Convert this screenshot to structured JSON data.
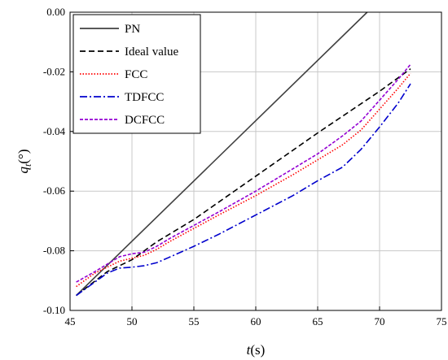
{
  "chart_data": {
    "type": "line",
    "xlabel": {
      "italic": "t",
      "rest": "(s)"
    },
    "ylabel": {
      "italic": "q",
      "sub": "t",
      "rest": "(°)"
    },
    "xlim": [
      45,
      75
    ],
    "ylim": [
      -0.1,
      0.0
    ],
    "x_ticks": [
      "45",
      "50",
      "55",
      "60",
      "65",
      "70",
      "75"
    ],
    "y_ticks": [
      "0.00",
      "-0.02",
      "-0.04",
      "-0.06",
      "-0.08",
      "-0.10"
    ],
    "grid": true,
    "legend_position": "top-left",
    "series": [
      {
        "name": "PN",
        "color": "#404040",
        "dash": "solid",
        "points": [
          [
            45.5,
            -0.095
          ],
          [
            69.0,
            0.0
          ]
        ]
      },
      {
        "name": "Ideal value",
        "color": "#000000",
        "dash": "dashed",
        "points": [
          [
            45.5,
            -0.095
          ],
          [
            48,
            -0.087
          ],
          [
            50,
            -0.083
          ],
          [
            52,
            -0.077
          ],
          [
            55,
            -0.0695
          ],
          [
            60,
            -0.055
          ],
          [
            65,
            -0.0405
          ],
          [
            70,
            -0.0265
          ],
          [
            72.5,
            -0.019
          ]
        ]
      },
      {
        "name": "FCC",
        "color": "#ff0000",
        "dash": "dotted",
        "points": [
          [
            45.5,
            -0.092
          ],
          [
            47,
            -0.0875
          ],
          [
            48,
            -0.0855
          ],
          [
            49,
            -0.0835
          ],
          [
            50,
            -0.0825
          ],
          [
            51,
            -0.0815
          ],
          [
            52,
            -0.0795
          ],
          [
            53,
            -0.077
          ],
          [
            55,
            -0.0725
          ],
          [
            57,
            -0.068
          ],
          [
            60,
            -0.0615
          ],
          [
            63,
            -0.0545
          ],
          [
            65,
            -0.0495
          ],
          [
            67,
            -0.0445
          ],
          [
            68.5,
            -0.0395
          ],
          [
            70,
            -0.0325
          ],
          [
            71.5,
            -0.0255
          ],
          [
            72.5,
            -0.0205
          ]
        ]
      },
      {
        "name": "TDFCC",
        "color": "#0000cd",
        "dash": "dashdot",
        "points": [
          [
            45.5,
            -0.095
          ],
          [
            47,
            -0.0905
          ],
          [
            48,
            -0.0875
          ],
          [
            49,
            -0.0858
          ],
          [
            50,
            -0.0855
          ],
          [
            51,
            -0.085
          ],
          [
            52,
            -0.084
          ],
          [
            53,
            -0.0822
          ],
          [
            55,
            -0.0785
          ],
          [
            57,
            -0.0745
          ],
          [
            60,
            -0.068
          ],
          [
            63,
            -0.0615
          ],
          [
            65,
            -0.0565
          ],
          [
            67,
            -0.052
          ],
          [
            68.5,
            -0.046
          ],
          [
            70,
            -0.0385
          ],
          [
            71.5,
            -0.0305
          ],
          [
            72.5,
            -0.024
          ]
        ]
      },
      {
        "name": "DCFCC",
        "color": "#9400d3",
        "dash": "shortdash",
        "points": [
          [
            45.5,
            -0.0905
          ],
          [
            47,
            -0.087
          ],
          [
            48,
            -0.0845
          ],
          [
            49,
            -0.082
          ],
          [
            50,
            -0.081
          ],
          [
            51,
            -0.0805
          ],
          [
            52,
            -0.0785
          ],
          [
            53,
            -0.076
          ],
          [
            55,
            -0.0715
          ],
          [
            57,
            -0.067
          ],
          [
            60,
            -0.06
          ],
          [
            63,
            -0.0525
          ],
          [
            65,
            -0.0475
          ],
          [
            67,
            -0.0415
          ],
          [
            68.5,
            -0.0365
          ],
          [
            70,
            -0.0295
          ],
          [
            71.5,
            -0.0225
          ],
          [
            72.5,
            -0.0175
          ]
        ]
      }
    ]
  }
}
